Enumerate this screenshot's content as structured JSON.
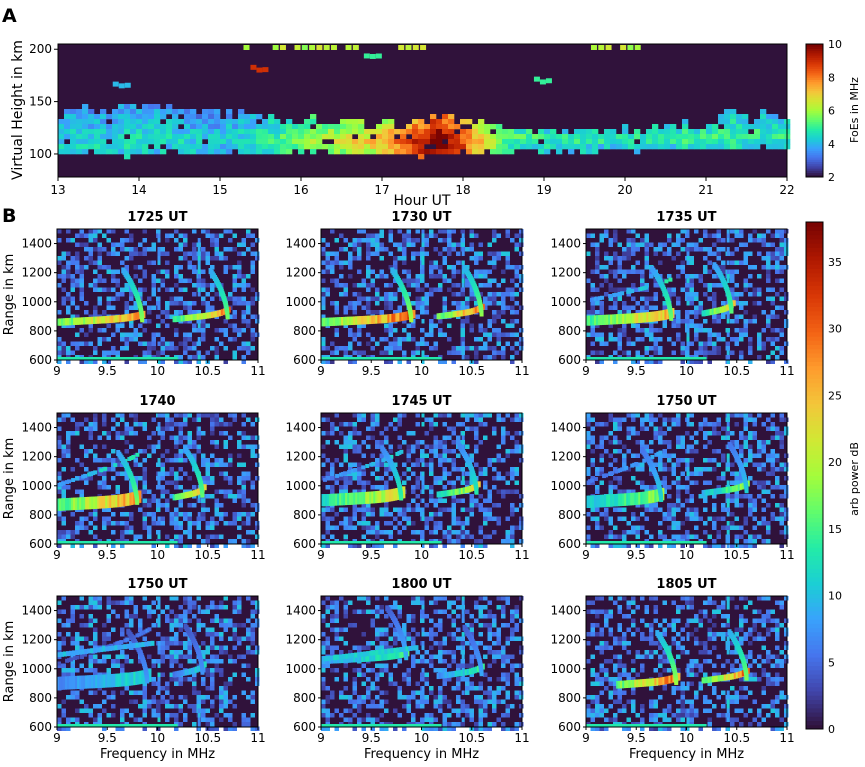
{
  "figure": {
    "panel_a_letter": "A",
    "panel_b_letter": "B"
  },
  "colors": {
    "background_dark": "#30123b",
    "colormap": [
      "#30123b",
      "#4145ab",
      "#4675ed",
      "#39a2fc",
      "#1bcfd4",
      "#24eca6",
      "#61fc6c",
      "#a4fc3b",
      "#d1e834",
      "#f3c63a",
      "#fe9b2d",
      "#f36315",
      "#d93806",
      "#b11901",
      "#7a0402"
    ]
  },
  "chart_data": [
    {
      "type": "heatmap",
      "id": "panel-a",
      "xlabel": "Hour UT",
      "ylabel": "Virtual Height in km",
      "xlim": [
        13,
        22
      ],
      "ylim": [
        78,
        205
      ],
      "xticks": [
        13,
        14,
        15,
        16,
        17,
        18,
        19,
        20,
        21,
        22
      ],
      "yticks": [
        100,
        150,
        200
      ],
      "colorbar": {
        "label": "FoEs in MHz",
        "range": [
          2,
          10
        ],
        "ticks": [
          2,
          4,
          6,
          8,
          10
        ]
      },
      "layer_profile": {
        "base_km": [
          [
            13,
            100
          ],
          [
            16,
            103
          ],
          [
            17.5,
            100
          ],
          [
            19,
            104
          ],
          [
            22,
            108
          ]
        ],
        "top_km": [
          [
            13,
            140
          ],
          [
            14.2,
            146
          ],
          [
            15,
            140
          ],
          [
            16,
            133
          ],
          [
            17,
            128
          ],
          [
            17.6,
            138
          ],
          [
            18,
            130
          ],
          [
            19,
            124
          ],
          [
            20,
            122
          ],
          [
            21,
            128
          ],
          [
            21.3,
            145
          ],
          [
            22,
            135
          ]
        ],
        "foEs_MHz": [
          [
            13,
            4.0
          ],
          [
            14,
            4.2
          ],
          [
            15,
            3.8
          ],
          [
            16,
            5.2
          ],
          [
            17,
            6.8
          ],
          [
            17.7,
            9.5
          ],
          [
            18,
            8.0
          ],
          [
            18.5,
            5.0
          ],
          [
            19,
            4.6
          ],
          [
            20,
            4.4
          ],
          [
            21,
            4.6
          ],
          [
            22,
            4.5
          ]
        ]
      },
      "sparse_features": [
        {
          "hour": 15.45,
          "height_km": 184,
          "foEs_MHz": 9
        },
        {
          "hour": 16.85,
          "height_km": 194,
          "foEs_MHz": 5
        },
        {
          "hour": 18.95,
          "height_km": 172,
          "foEs_MHz": 5
        },
        {
          "hour": 13.75,
          "height_km": 168,
          "foEs_MHz": 4
        }
      ]
    },
    {
      "type": "heatmap",
      "id": "panel-b",
      "xlabel": "Frequency in MHz",
      "ylabel": "Range in km",
      "xlim": [
        9,
        11
      ],
      "ylim": [
        600,
        1500
      ],
      "xticks": [
        9,
        9.5,
        10,
        10.5,
        11
      ],
      "yticks": [
        600,
        800,
        1000,
        1200,
        1400
      ],
      "colorbar": {
        "label": "arb power dB",
        "range": [
          0,
          38
        ],
        "ticks": [
          0,
          5,
          10,
          15,
          20,
          25,
          30,
          35
        ]
      },
      "ionograms": [
        {
          "title": "1725 UT",
          "o_nose_MHz": 9.85,
          "o_base_km": 860,
          "x_nose_MHz": 10.7,
          "x_base_km": 880,
          "peak_dB": 28,
          "lower_trace_MHz": [
            9.0,
            9.95
          ],
          "spread": 0.15
        },
        {
          "title": "1730 UT",
          "o_nose_MHz": 9.9,
          "o_base_km": 860,
          "x_nose_MHz": 10.6,
          "x_base_km": 900,
          "peak_dB": 30,
          "lower_trace_MHz": [
            9.0,
            9.95
          ],
          "spread": 0.3
        },
        {
          "title": "1735 UT",
          "o_nose_MHz": 9.85,
          "o_base_km": 870,
          "x_nose_MHz": 10.45,
          "x_base_km": 920,
          "peak_dB": 26,
          "lower_trace_MHz": [
            9.0,
            9.9
          ],
          "spread": 0.5
        },
        {
          "title": "1740",
          "o_nose_MHz": 9.8,
          "o_base_km": 870,
          "x_nose_MHz": 10.45,
          "x_base_km": 920,
          "peak_dB": 27,
          "lower_trace_MHz": [
            9.0,
            9.85
          ],
          "spread": 0.8
        },
        {
          "title": "1745 UT",
          "o_nose_MHz": 9.8,
          "o_base_km": 900,
          "x_nose_MHz": 10.55,
          "x_base_km": 940,
          "peak_dB": 22,
          "lower_trace_MHz": [
            9.0,
            9.85
          ],
          "spread": 0.75
        },
        {
          "title": "1750 UT",
          "o_nose_MHz": 9.75,
          "o_base_km": 890,
          "x_nose_MHz": 10.6,
          "x_base_km": 950,
          "peak_dB": 18,
          "lower_trace_MHz": [
            9.0,
            9.8
          ],
          "spread": 0.8
        },
        {
          "title": "1750 UT",
          "o_nose_MHz": 9.9,
          "o_base_km": 900,
          "x_nose_MHz": 10.45,
          "x_base_km": 960,
          "peak_dB": 12,
          "lower_trace_MHz": [
            9.0,
            9.95
          ],
          "spread": 0.9,
          "upper_trace_km": 1100
        },
        {
          "title": "1800 UT",
          "o_nose_MHz": 9.85,
          "o_base_km": 1060,
          "x_nose_MHz": 10.6,
          "x_base_km": 950,
          "peak_dB": 14,
          "lower_trace_MHz": [
            9.0,
            9.9
          ],
          "spread": 0.25,
          "upper_trace_km": 1070
        },
        {
          "title": "1805 UT",
          "o_nose_MHz": 9.9,
          "o_base_km": 890,
          "x_nose_MHz": 10.6,
          "x_base_km": 920,
          "peak_dB": 29,
          "lower_trace_MHz": [
            9.3,
            9.95
          ],
          "spread": 0.2
        }
      ]
    }
  ]
}
